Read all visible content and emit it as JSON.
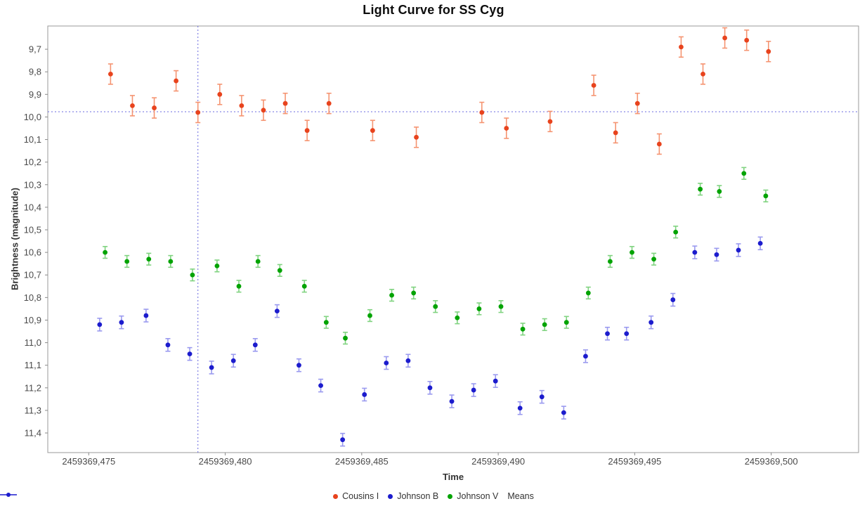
{
  "chart_data": {
    "type": "scatter",
    "title": "Light Curve for SS Cyg",
    "xlabel": "Time",
    "ylabel": "Brightness (magnitude)",
    "y_axis_inverted": true,
    "grid": false,
    "legend_position": "bottom",
    "xlim": [
      2459369.4735,
      2459369.5032
    ],
    "ylim": [
      9.597,
      11.487
    ],
    "x_ticks": [
      {
        "v": 2459369.475,
        "label": "2459369,475"
      },
      {
        "v": 2459369.48,
        "label": "2459369,480"
      },
      {
        "v": 2459369.485,
        "label": "2459369,485"
      },
      {
        "v": 2459369.49,
        "label": "2459369,490"
      },
      {
        "v": 2459369.495,
        "label": "2459369,495"
      },
      {
        "v": 2459369.5,
        "label": "2459369,500"
      }
    ],
    "y_ticks": [
      {
        "v": 9.7,
        "label": "9,7"
      },
      {
        "v": 9.8,
        "label": "9,8"
      },
      {
        "v": 9.9,
        "label": "9,9"
      },
      {
        "v": 10.0,
        "label": "10,0"
      },
      {
        "v": 10.1,
        "label": "10,1"
      },
      {
        "v": 10.2,
        "label": "10,2"
      },
      {
        "v": 10.3,
        "label": "10,3"
      },
      {
        "v": 10.4,
        "label": "10,4"
      },
      {
        "v": 10.5,
        "label": "10,5"
      },
      {
        "v": 10.6,
        "label": "10,6"
      },
      {
        "v": 10.7,
        "label": "10,7"
      },
      {
        "v": 10.8,
        "label": "10,8"
      },
      {
        "v": 10.9,
        "label": "10,9"
      },
      {
        "v": 11.0,
        "label": "11,0"
      },
      {
        "v": 11.1,
        "label": "11,1"
      },
      {
        "v": 11.2,
        "label": "11,2"
      },
      {
        "v": 11.3,
        "label": "11,3"
      },
      {
        "v": 11.4,
        "label": "11,4"
      }
    ],
    "crosshair": {
      "x": 2459369.479,
      "y": 9.977,
      "color": "#6b6be0"
    },
    "colors": {
      "plot_border": "#9a9a9a",
      "tick": "#8a8a8a",
      "tick_label": "#4a4a4a",
      "background": "#ffffff"
    },
    "series": [
      {
        "name": "Cousins I",
        "color": "#e8431d",
        "err_color": "#f59471",
        "marker": "circle",
        "err": 0.045,
        "points": [
          [
            2459369.4758,
            9.81
          ],
          [
            2459369.4766,
            9.95
          ],
          [
            2459369.4774,
            9.96
          ],
          [
            2459369.4782,
            9.84
          ],
          [
            2459369.479,
            9.98
          ],
          [
            2459369.4798,
            9.9
          ],
          [
            2459369.4806,
            9.95
          ],
          [
            2459369.4814,
            9.97
          ],
          [
            2459369.4822,
            9.94
          ],
          [
            2459369.483,
            10.06
          ],
          [
            2459369.4838,
            9.94
          ],
          [
            2459369.4854,
            10.06
          ],
          [
            2459369.487,
            10.09
          ],
          [
            2459369.4894,
            9.98
          ],
          [
            2459369.4903,
            10.05
          ],
          [
            2459369.4919,
            10.02
          ],
          [
            2459369.4935,
            9.86
          ],
          [
            2459369.4943,
            10.07
          ],
          [
            2459369.4951,
            9.94
          ],
          [
            2459369.4959,
            10.12
          ],
          [
            2459369.4967,
            9.69
          ],
          [
            2459369.4975,
            9.81
          ],
          [
            2459369.4983,
            9.65
          ],
          [
            2459369.4991,
            9.66
          ],
          [
            2459369.4999,
            9.71
          ]
        ]
      },
      {
        "name": "Johnson B",
        "color": "#1c1ccd",
        "err_color": "#9a9aef",
        "marker": "circle",
        "err": 0.028,
        "points": [
          [
            2459369.4754,
            10.92
          ],
          [
            2459369.4762,
            10.91
          ],
          [
            2459369.4771,
            10.88
          ],
          [
            2459369.4779,
            11.01
          ],
          [
            2459369.4787,
            11.05
          ],
          [
            2459369.4795,
            11.11
          ],
          [
            2459369.4803,
            11.08
          ],
          [
            2459369.4811,
            11.01
          ],
          [
            2459369.4819,
            10.86
          ],
          [
            2459369.4827,
            11.1
          ],
          [
            2459369.4835,
            11.19
          ],
          [
            2459369.4843,
            11.43
          ],
          [
            2459369.4851,
            11.23
          ],
          [
            2459369.4859,
            11.09
          ],
          [
            2459369.4867,
            11.08
          ],
          [
            2459369.4875,
            11.2
          ],
          [
            2459369.4883,
            11.26
          ],
          [
            2459369.4891,
            11.21
          ],
          [
            2459369.4899,
            11.17
          ],
          [
            2459369.4908,
            11.29
          ],
          [
            2459369.4916,
            11.24
          ],
          [
            2459369.4924,
            11.31
          ],
          [
            2459369.4932,
            11.06
          ],
          [
            2459369.494,
            10.96
          ],
          [
            2459369.4947,
            10.96
          ],
          [
            2459369.4956,
            10.91
          ],
          [
            2459369.4964,
            10.81
          ],
          [
            2459369.4972,
            10.6
          ],
          [
            2459369.498,
            10.61
          ],
          [
            2459369.4988,
            10.59
          ],
          [
            2459369.4996,
            10.56
          ]
        ]
      },
      {
        "name": "Johnson V",
        "color": "#02a302",
        "err_color": "#80d380",
        "marker": "circle",
        "err": 0.026,
        "points": [
          [
            2459369.4756,
            10.6
          ],
          [
            2459369.4764,
            10.64
          ],
          [
            2459369.4772,
            10.63
          ],
          [
            2459369.478,
            10.64
          ],
          [
            2459369.4788,
            10.7
          ],
          [
            2459369.4797,
            10.66
          ],
          [
            2459369.4805,
            10.75
          ],
          [
            2459369.4812,
            10.64
          ],
          [
            2459369.482,
            10.68
          ],
          [
            2459369.4829,
            10.75
          ],
          [
            2459369.4837,
            10.91
          ],
          [
            2459369.4844,
            10.98
          ],
          [
            2459369.4853,
            10.88
          ],
          [
            2459369.4861,
            10.79
          ],
          [
            2459369.4869,
            10.78
          ],
          [
            2459369.4877,
            10.84
          ],
          [
            2459369.4885,
            10.89
          ],
          [
            2459369.4893,
            10.85
          ],
          [
            2459369.4901,
            10.84
          ],
          [
            2459369.4909,
            10.94
          ],
          [
            2459369.4917,
            10.92
          ],
          [
            2459369.4925,
            10.91
          ],
          [
            2459369.4933,
            10.78
          ],
          [
            2459369.4941,
            10.64
          ],
          [
            2459369.4949,
            10.6
          ],
          [
            2459369.4957,
            10.63
          ],
          [
            2459369.4965,
            10.51
          ],
          [
            2459369.4974,
            10.32
          ],
          [
            2459369.4981,
            10.33
          ],
          [
            2459369.499,
            10.25
          ],
          [
            2459369.4998,
            10.35
          ]
        ]
      },
      {
        "name": "Means",
        "color": "#1c1ccd",
        "err_color": "#9a9aef",
        "marker": "line-circle",
        "err": 0,
        "points": []
      }
    ]
  }
}
